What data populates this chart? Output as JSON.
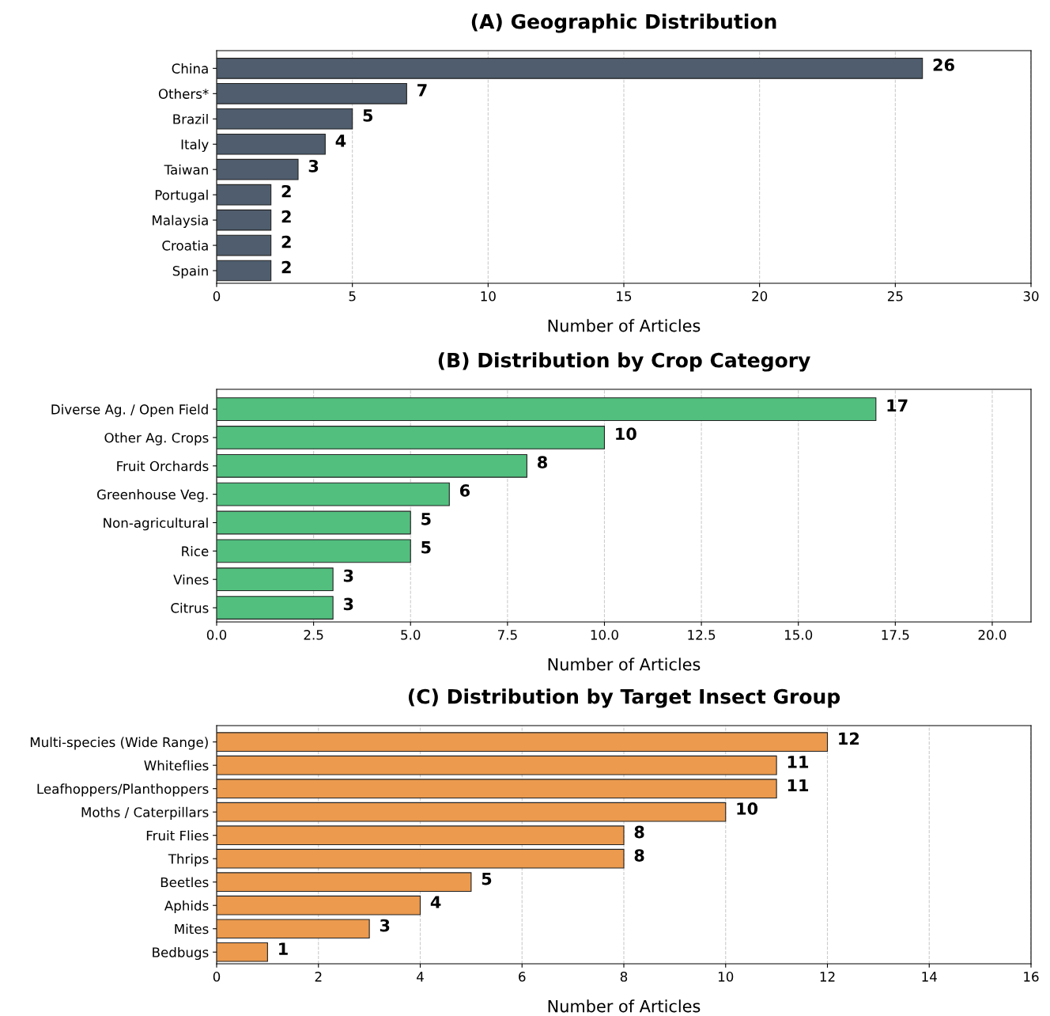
{
  "chart_data": [
    {
      "type": "bar",
      "orientation": "horizontal",
      "title": "(A) Geographic Distribution",
      "xlabel": "Number of Articles",
      "categories": [
        "China",
        "Others*",
        "Brazil",
        "Italy",
        "Taiwan",
        "Portugal",
        "Malaysia",
        "Croatia",
        "Spain"
      ],
      "values": [
        26,
        7,
        5,
        4,
        3,
        2,
        2,
        2,
        2
      ],
      "color": "#4f5d6e",
      "xlim": [
        0,
        30
      ],
      "xticks": [
        0,
        5,
        10,
        15,
        20,
        25,
        30
      ],
      "grid": "x",
      "data_labels": true
    },
    {
      "type": "bar",
      "orientation": "horizontal",
      "title": "(B) Distribution by Crop Category",
      "xlabel": "Number of Articles",
      "categories": [
        "Diverse Ag. / Open Field",
        "Other Ag. Crops",
        "Fruit Orchards",
        "Greenhouse Veg.",
        "Non-agricultural",
        "Rice",
        "Vines",
        "Citrus"
      ],
      "values": [
        17,
        10,
        8,
        6,
        5,
        5,
        3,
        3
      ],
      "color": "#52bf7f",
      "xlim": [
        0,
        21
      ],
      "xticks": [
        {
          "value": 0,
          "label": "0.0"
        },
        {
          "value": 2.5,
          "label": "2.5"
        },
        {
          "value": 5,
          "label": "5.0"
        },
        {
          "value": 7.5,
          "label": "7.5"
        },
        {
          "value": 10,
          "label": "10.0"
        },
        {
          "value": 12.5,
          "label": "12.5"
        },
        {
          "value": 15,
          "label": "15.0"
        },
        {
          "value": 17.5,
          "label": "17.5"
        },
        {
          "value": 20,
          "label": "20.0"
        }
      ],
      "grid": "x",
      "data_labels": true
    },
    {
      "type": "bar",
      "orientation": "horizontal",
      "title": "(C) Distribution by Target Insect Group",
      "xlabel": "Number of Articles",
      "categories": [
        "Multi-species (Wide Range)",
        "Whiteflies",
        "Leafhoppers/Planthoppers",
        "Moths / Caterpillars",
        "Fruit Flies",
        "Thrips",
        "Beetles",
        "Aphids",
        "Mites",
        "Bedbugs"
      ],
      "values": [
        12,
        11,
        11,
        10,
        8,
        8,
        5,
        4,
        3,
        1
      ],
      "color": "#eb9a4e",
      "xlim": [
        0,
        16
      ],
      "xticks": [
        0,
        2,
        4,
        6,
        8,
        10,
        12,
        14,
        16
      ],
      "grid": "x",
      "data_labels": true
    }
  ]
}
